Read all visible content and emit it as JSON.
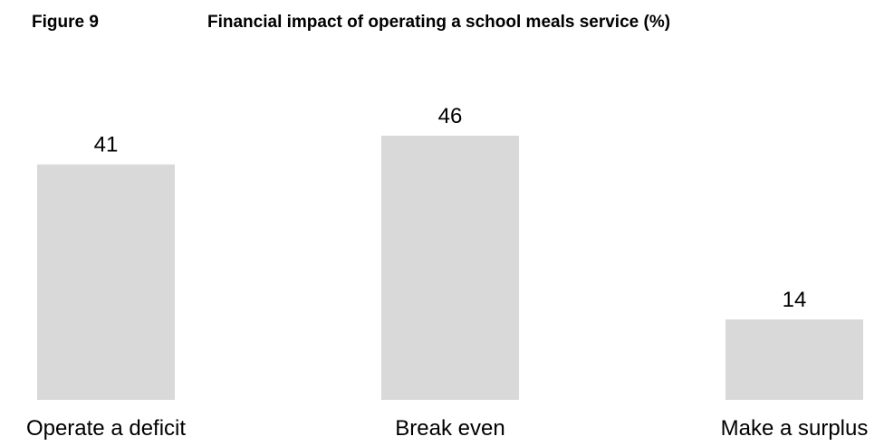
{
  "figure": {
    "number": "Figure 9",
    "title": "Financial impact of operating a school meals service (%)"
  },
  "chart_data": {
    "type": "bar",
    "title": "Financial impact of operating a school meals service (%)",
    "categories": [
      "Operate a deficit",
      "Break even",
      "Make a surplus"
    ],
    "values": [
      41,
      46,
      14
    ],
    "data_labels": [
      "41",
      "46",
      "14"
    ],
    "xlabel": "",
    "ylabel": "",
    "ylim": [
      0,
      46
    ],
    "grid": false,
    "legend": "none",
    "bar_color": "#d9d9d9"
  }
}
